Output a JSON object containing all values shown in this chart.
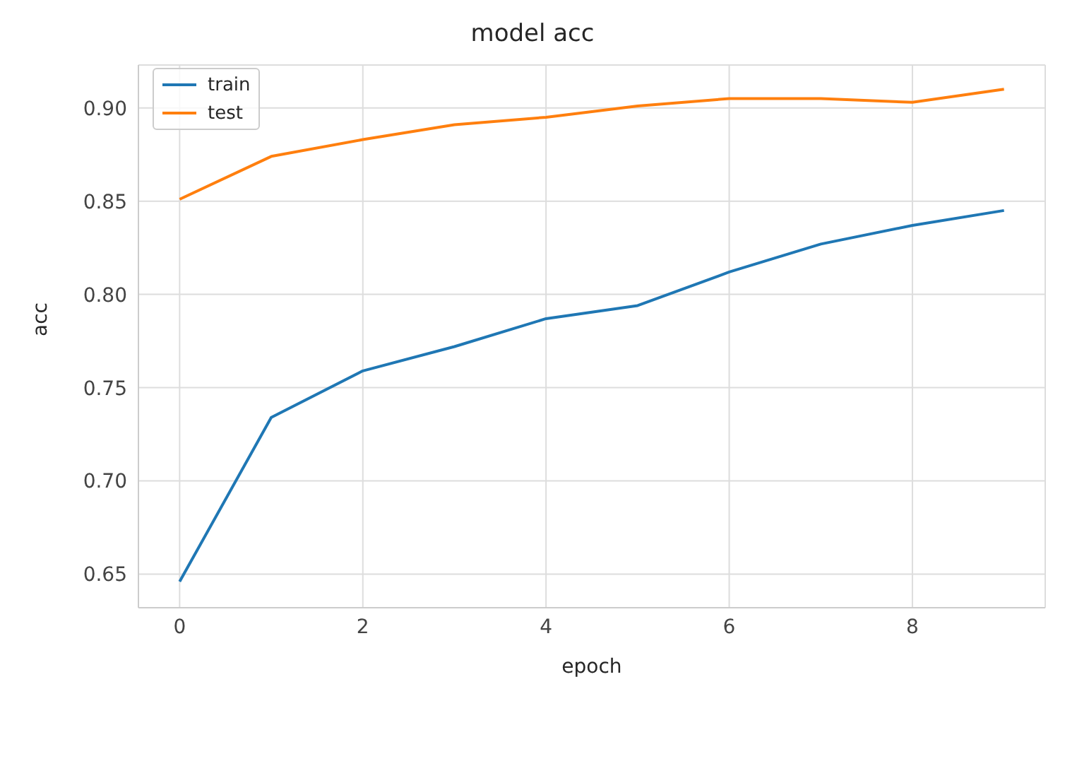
{
  "chart_data": {
    "type": "line",
    "title": "model acc",
    "xlabel": "epoch",
    "ylabel": "acc",
    "x": [
      0,
      1,
      2,
      3,
      4,
      5,
      6,
      7,
      8,
      9
    ],
    "series": [
      {
        "name": "train",
        "color": "#1f77b4",
        "values": [
          0.646,
          0.734,
          0.759,
          0.772,
          0.787,
          0.794,
          0.812,
          0.827,
          0.837,
          0.845
        ]
      },
      {
        "name": "test",
        "color": "#ff7f0e",
        "values": [
          0.851,
          0.874,
          0.883,
          0.891,
          0.895,
          0.901,
          0.905,
          0.905,
          0.903,
          0.91
        ]
      }
    ],
    "xlim": [
      -0.45,
      9.45
    ],
    "xticks": [
      0,
      2,
      4,
      6,
      8
    ],
    "ylim": [
      0.632,
      0.923
    ],
    "yticks": [
      {
        "value": 0.65,
        "label": "0.65"
      },
      {
        "value": 0.7,
        "label": "0.70"
      },
      {
        "value": 0.75,
        "label": "0.75"
      },
      {
        "value": 0.8,
        "label": "0.80"
      },
      {
        "value": 0.85,
        "label": "0.85"
      },
      {
        "value": 0.9,
        "label": "0.90"
      }
    ],
    "grid": true,
    "legend": "top left",
    "marker": "none",
    "line_style": "solid"
  }
}
